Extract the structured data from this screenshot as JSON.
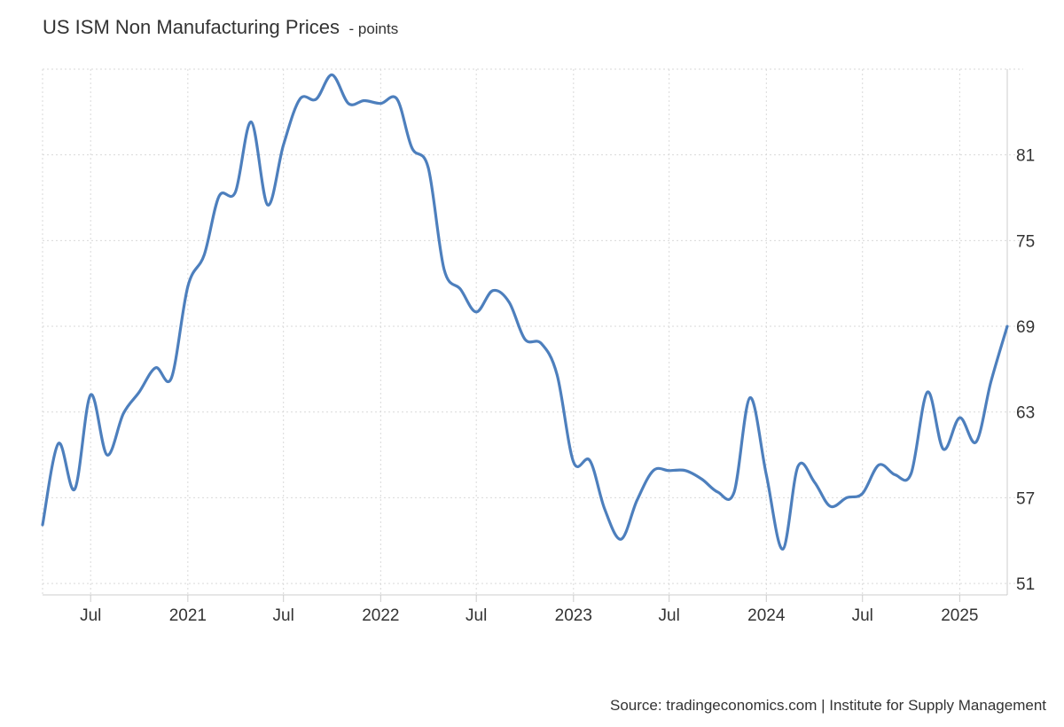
{
  "title": "US ISM Non Manufacturing Prices",
  "unit_suffix": "- points",
  "source": "Source: tradingeconomics.com | Institute for Supply Management",
  "colors": {
    "line": "#4d7fbd",
    "grid": "#d9d9d9",
    "axis": "#cccccc",
    "text": "#333333"
  },
  "chart_data": {
    "type": "line",
    "title": "US ISM Non Manufacturing Prices",
    "ylabel": "points",
    "ylim": [
      50.2,
      87
    ],
    "xlim": [
      "2020-04-01",
      "2025-04-01"
    ],
    "grid": true,
    "y_ticks": [
      51,
      57,
      63,
      69,
      75,
      81
    ],
    "y_tick_labels": [
      "51",
      "57",
      "63",
      "69",
      "75",
      "81"
    ],
    "x_ticks": [
      "2020-07-01",
      "2021-01-01",
      "2021-07-01",
      "2022-01-01",
      "2022-07-01",
      "2023-01-01",
      "2023-07-01",
      "2024-01-01",
      "2024-07-01",
      "2025-01-01"
    ],
    "x_tick_labels": [
      "Jul",
      "2021",
      "Jul",
      "2022",
      "Jul",
      "2023",
      "Jul",
      "2024",
      "Jul",
      "2025"
    ],
    "x": [
      "2020-04-01",
      "2020-05-01",
      "2020-06-01",
      "2020-07-01",
      "2020-08-01",
      "2020-09-01",
      "2020-10-01",
      "2020-11-01",
      "2020-12-01",
      "2021-01-01",
      "2021-02-01",
      "2021-03-01",
      "2021-04-01",
      "2021-05-01",
      "2021-06-01",
      "2021-07-01",
      "2021-08-01",
      "2021-09-01",
      "2021-10-01",
      "2021-11-01",
      "2021-12-01",
      "2022-01-01",
      "2022-02-01",
      "2022-03-01",
      "2022-04-01",
      "2022-05-01",
      "2022-06-01",
      "2022-07-01",
      "2022-08-01",
      "2022-09-01",
      "2022-10-01",
      "2022-11-01",
      "2022-12-01",
      "2023-01-01",
      "2023-02-01",
      "2023-03-01",
      "2023-04-01",
      "2023-05-01",
      "2023-06-01",
      "2023-07-01",
      "2023-08-01",
      "2023-09-01",
      "2023-10-01",
      "2023-11-01",
      "2023-12-01",
      "2024-01-01",
      "2024-02-01",
      "2024-03-01",
      "2024-04-01",
      "2024-05-01",
      "2024-06-01",
      "2024-07-01",
      "2024-08-01",
      "2024-09-01",
      "2024-10-01",
      "2024-11-01",
      "2024-12-01",
      "2025-01-01",
      "2025-02-01",
      "2025-03-01",
      "2025-04-01"
    ],
    "series": [
      {
        "values": [
          55.1,
          60.8,
          57.6,
          64.2,
          60.0,
          62.9,
          64.4,
          66.1,
          65.4,
          71.8,
          74.0,
          78.1,
          78.4,
          83.3,
          77.5,
          81.7,
          84.9,
          84.9,
          86.6,
          84.6,
          84.8,
          84.6,
          84.9,
          81.5,
          80.1,
          73.0,
          71.6,
          70.0,
          71.5,
          70.7,
          68.1,
          67.8,
          65.6,
          59.5,
          59.6,
          56.2,
          54.1,
          56.8,
          58.9,
          58.9,
          58.9,
          58.3,
          57.4,
          57.4,
          64.0,
          58.6,
          53.4,
          59.2,
          58.1,
          56.4,
          57.0,
          57.3,
          59.3,
          58.6,
          58.7,
          64.4,
          60.4,
          62.6,
          60.9,
          65.1,
          69.0
        ]
      }
    ]
  }
}
